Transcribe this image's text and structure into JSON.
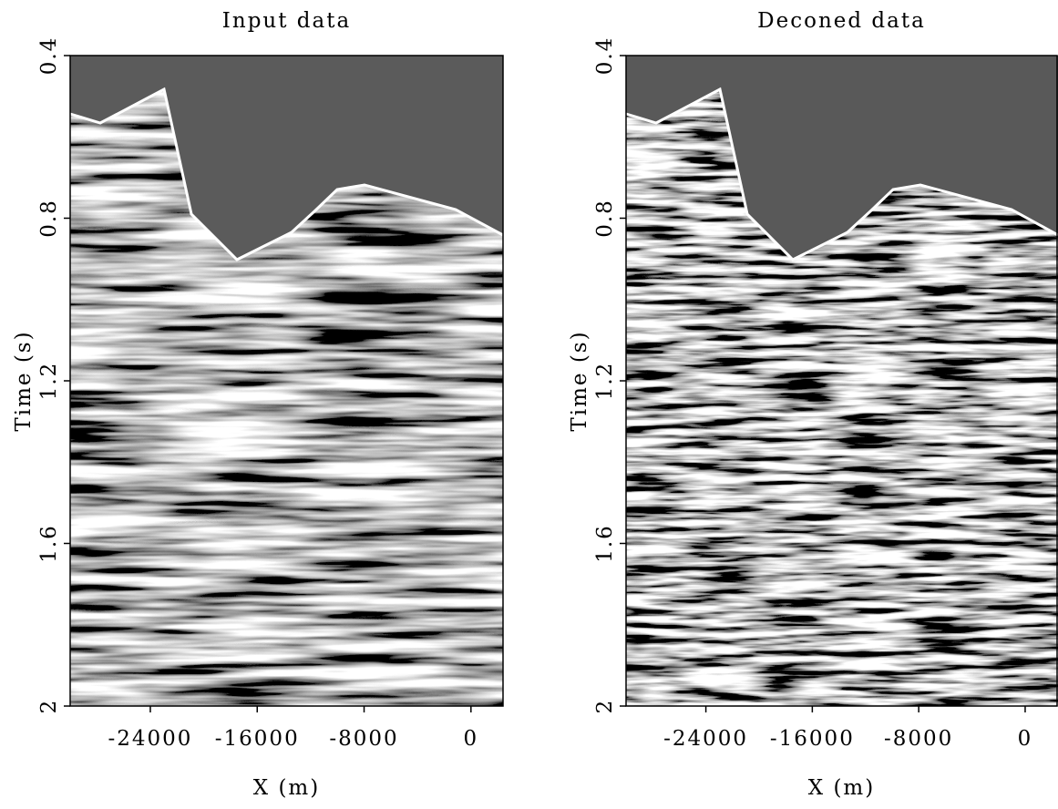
{
  "chart_data": [
    {
      "type": "image",
      "title": "Input data",
      "xlabel": "X (m)",
      "ylabel": "Time (s)",
      "xlim": [
        -30000,
        2400
      ],
      "xticks": [
        -24000,
        -16000,
        -8000,
        0
      ],
      "ylim": [
        0.4,
        2
      ],
      "yticks": [
        0.4,
        0.8,
        1.2,
        1.6,
        2
      ],
      "y_inverted": true
    },
    {
      "type": "image",
      "title": "Deconed data",
      "xlabel": "X (m)",
      "ylabel": "Time (s)",
      "xlim": [
        -30000,
        2400
      ],
      "xticks": [
        -24000,
        -16000,
        -8000,
        0
      ],
      "ylim": [
        0.4,
        2
      ],
      "yticks": [
        0.4,
        0.8,
        1.2,
        1.6,
        2
      ],
      "y_inverted": true
    }
  ]
}
